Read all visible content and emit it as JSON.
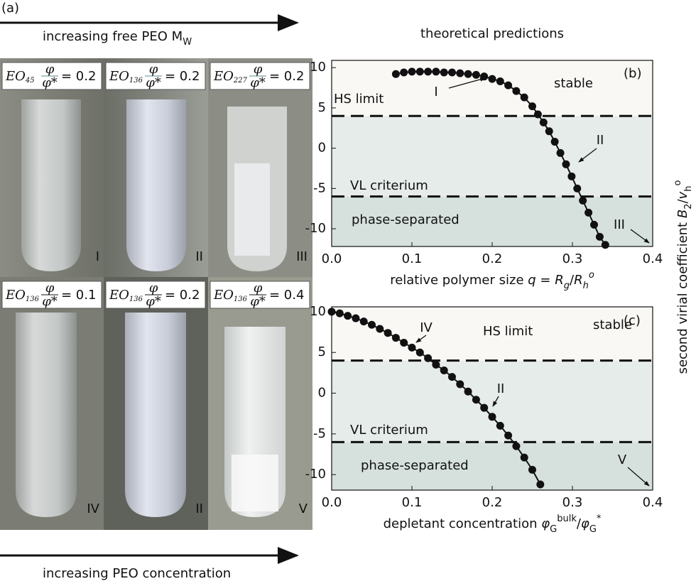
{
  "panel_a": {
    "label": "(a)",
    "top_arrow_text": [
      {
        "text": "increasing free PEO M"
      },
      {
        "text": "W",
        "style": "sub"
      }
    ],
    "bottom_arrow_text": "increasing PEO concentration",
    "photos": [
      {
        "label": "EO",
        "subscript": "45",
        "numerator": "φ",
        "denominator": "φ*",
        "value": "= 0.2",
        "numeral": "I"
      },
      {
        "label": "EO",
        "subscript": "136",
        "numerator": "φ",
        "denominator": "φ*",
        "value": "= 0.2",
        "numeral": "II"
      },
      {
        "label": "EO",
        "subscript": "227",
        "numerator": "φ",
        "denominator": "φ*",
        "value": "= 0.2",
        "numeral": "III"
      },
      {
        "label": "EO",
        "subscript": "136",
        "numerator": "φ",
        "denominator": "φ*",
        "value": "= 0.1",
        "numeral": "IV"
      },
      {
        "label": "EO",
        "subscript": "136",
        "numerator": "φ",
        "denominator": "φ*",
        "value": "= 0.2",
        "numeral": "II"
      },
      {
        "label": "EO",
        "subscript": "136",
        "numerator": "φ",
        "denominator": "φ*",
        "value": "= 0.4",
        "numeral": "V"
      }
    ]
  },
  "header": "theoretical predictions",
  "chart_data": [
    {
      "type": "line",
      "panel_label": "(b)",
      "x": [
        0.08,
        0.09,
        0.1,
        0.11,
        0.12,
        0.13,
        0.14,
        0.15,
        0.16,
        0.17,
        0.18,
        0.19,
        0.2,
        0.21,
        0.22,
        0.23,
        0.24,
        0.25,
        0.257,
        0.264,
        0.271,
        0.278,
        0.285,
        0.292,
        0.299,
        0.306,
        0.313,
        0.32,
        0.327,
        0.334,
        0.341
      ],
      "series": [
        {
          "color": "#111111",
          "values": [
            9.2,
            9.4,
            9.5,
            9.5,
            9.5,
            9.5,
            9.4,
            9.4,
            9.3,
            9.2,
            9.1,
            8.9,
            8.6,
            8.3,
            7.8,
            7.1,
            6.3,
            5.2,
            4.2,
            3.2,
            2.1,
            0.8,
            -0.6,
            -2.0,
            -3.5,
            -5.0,
            -6.5,
            -8.0,
            -9.5,
            -11.0,
            -12.0
          ]
        }
      ],
      "xlim": [
        0,
        0.4
      ],
      "ylim": [
        -12.2,
        10.9
      ],
      "xticks": [
        {
          "value": 0,
          "label": "0.0"
        },
        0.1,
        0.2,
        0.3,
        0.4
      ],
      "yticks": [
        -10,
        -5,
        0,
        5,
        10
      ],
      "reference_lines": [
        {
          "value": 4,
          "label": "HS limit"
        },
        {
          "value": -6,
          "label": "VL criterium"
        }
      ],
      "region_labels": [
        "stable",
        "phase-separated"
      ],
      "annotations": [
        "I",
        "II",
        "III"
      ],
      "xlabel": [
        {
          "text": "relative polymer size "
        },
        {
          "text": "q",
          "style": "italic"
        },
        {
          "text": " = "
        },
        {
          "text": "R",
          "style": "italic"
        },
        {
          "text": "g",
          "style": "italic-sub"
        },
        {
          "text": "/"
        },
        {
          "text": "R",
          "style": "italic"
        },
        {
          "text": "h",
          "style": "italic-sub"
        },
        {
          "text": "o",
          "style": "italic-sup"
        }
      ],
      "ylabel": [
        {
          "text": "second virial coefficient "
        },
        {
          "text": "B",
          "style": "italic"
        },
        {
          "text": "2",
          "style": "sub"
        },
        {
          "text": "/"
        },
        {
          "text": "v",
          "style": "italic"
        },
        {
          "text": "h",
          "style": "sub"
        },
        {
          "text": "o",
          "style": "sup"
        }
      ]
    },
    {
      "type": "line",
      "panel_label": "(c)",
      "x": [
        0,
        0.01,
        0.02,
        0.03,
        0.04,
        0.05,
        0.06,
        0.07,
        0.08,
        0.09,
        0.1,
        0.11,
        0.12,
        0.13,
        0.14,
        0.15,
        0.16,
        0.17,
        0.18,
        0.19,
        0.2,
        0.21,
        0.22,
        0.23,
        0.24,
        0.25,
        0.26
      ],
      "series": [
        {
          "color": "#111111",
          "values": [
            10,
            9.8,
            9.5,
            9.2,
            8.8,
            8.4,
            7.9,
            7.4,
            6.8,
            6.2,
            5.6,
            5.0,
            4.3,
            3.5,
            2.8,
            2.0,
            1.1,
            0.2,
            -0.8,
            -1.8,
            -2.9,
            -4.0,
            -5.2,
            -6.5,
            -7.9,
            -9.4,
            -11.2
          ]
        }
      ],
      "xlim": [
        0,
        0.4
      ],
      "ylim": [
        -11.9,
        10.6
      ],
      "xticks": [
        {
          "value": 0,
          "label": "0.0"
        },
        0.1,
        0.2,
        0.3,
        0.4
      ],
      "yticks": [
        -10,
        -5,
        0,
        5,
        10
      ],
      "reference_lines": [
        {
          "value": 4,
          "label": "HS limit"
        },
        {
          "value": -6,
          "label": "VL criterium"
        }
      ],
      "region_labels": [
        "stable",
        "phase-separated"
      ],
      "annotations": [
        "IV",
        "II",
        "V"
      ],
      "xlabel": [
        {
          "text": "depletant concentration "
        },
        {
          "text": "φ",
          "style": "italic"
        },
        {
          "text": "G",
          "style": "sub"
        },
        {
          "text": "bulk",
          "style": "sup"
        },
        {
          "text": "/"
        },
        {
          "text": "φ",
          "style": "italic"
        },
        {
          "text": "G",
          "style": "sub"
        },
        {
          "text": "*",
          "style": "sup"
        }
      ]
    }
  ]
}
